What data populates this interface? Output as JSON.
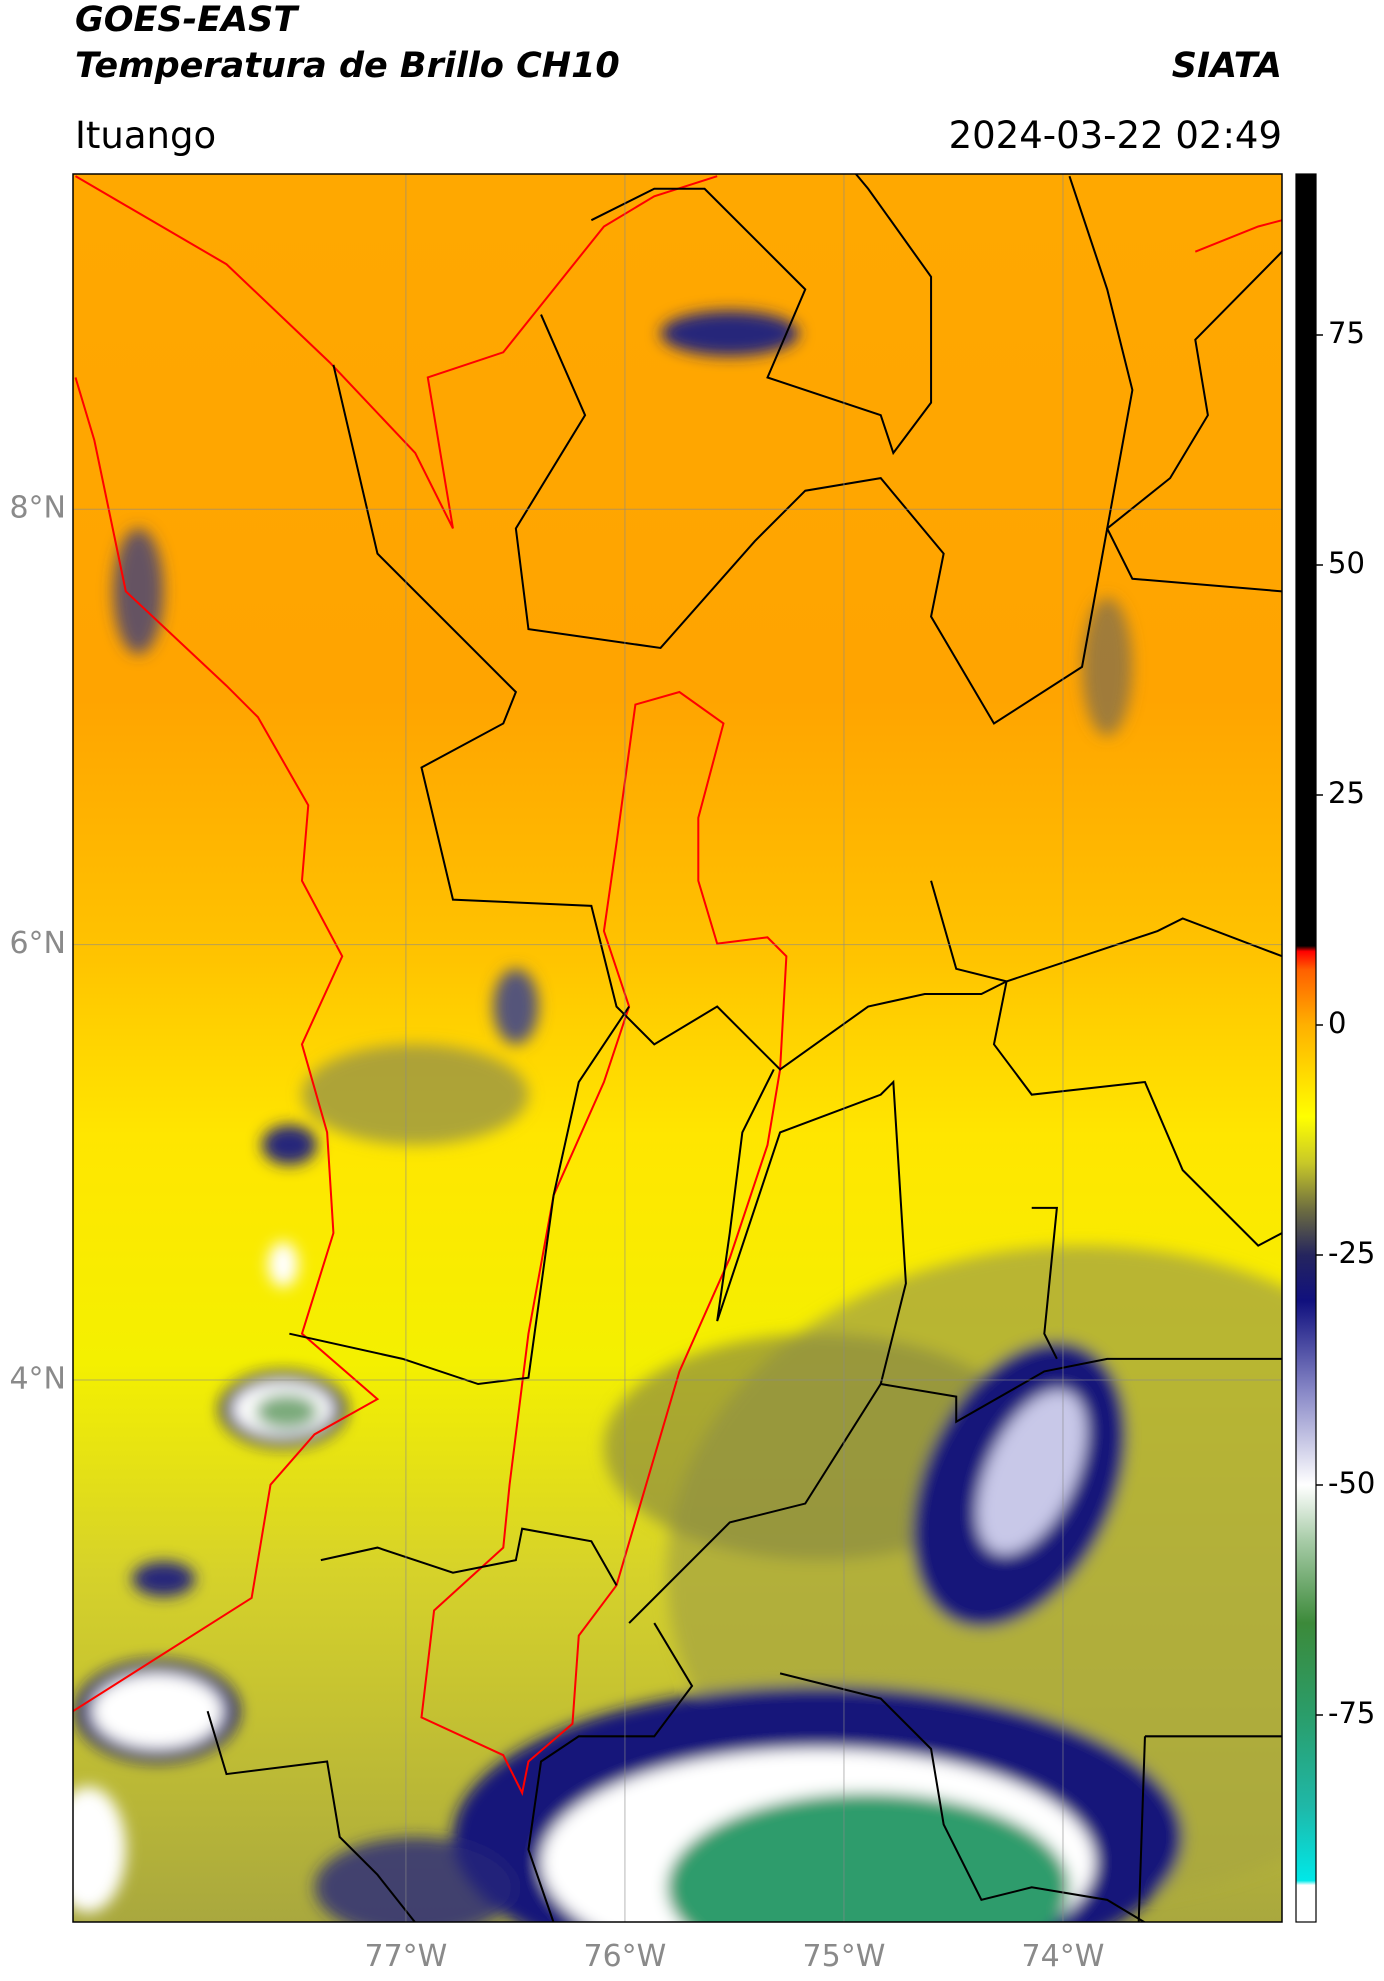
{
  "header": {
    "title_line1": "GOES-EAST",
    "title_line2": "Temperatura de Brillo CH10",
    "source": "SIATA",
    "region": "Ituango",
    "datetime": "2024-03-22 02:49"
  },
  "map": {
    "type": "map",
    "lon_lim": [
      -78.52,
      -73.0
    ],
    "lat_lim": [
      1.51,
      9.54
    ],
    "grid": true,
    "lat_ticks": [
      {
        "value": 8,
        "label": "8°N"
      },
      {
        "value": 6,
        "label": "6°N"
      },
      {
        "value": 4,
        "label": "4°N"
      }
    ],
    "lon_ticks": [
      {
        "value": -77,
        "label": "77°W"
      },
      {
        "value": -76,
        "label": "76°W"
      },
      {
        "value": -75,
        "label": "75°W"
      },
      {
        "value": -74,
        "label": "74°W"
      }
    ]
  },
  "colorbar": {
    "lim": [
      -97.5,
      92.5
    ],
    "ticks": [
      75,
      50,
      25,
      0,
      -25,
      -50,
      -75
    ],
    "colormap": [
      {
        "value": -97.5,
        "color": "#ffffff"
      },
      {
        "value": -93.5,
        "color": "#ffffff"
      },
      {
        "value": -93,
        "color": "#00e8e8"
      },
      {
        "value": -85,
        "color": "#1fb8a8"
      },
      {
        "value": -75,
        "color": "#2a9d6a"
      },
      {
        "value": -65,
        "color": "#3c8a3a"
      },
      {
        "value": -56,
        "color": "#a8cca8"
      },
      {
        "value": -50,
        "color": "#ffffff"
      },
      {
        "value": -40,
        "color": "#8a8ac8"
      },
      {
        "value": -30,
        "color": "#10107e"
      },
      {
        "value": -25,
        "color": "#25255e"
      },
      {
        "value": -20,
        "color": "#6e6e40"
      },
      {
        "value": -15,
        "color": "#c8c828"
      },
      {
        "value": -10,
        "color": "#ffff00"
      },
      {
        "value": 0,
        "color": "#ffb000"
      },
      {
        "value": 6,
        "color": "#ff6000"
      },
      {
        "value": 8,
        "color": "#ff0000"
      },
      {
        "value": 8.6,
        "color": "#000000"
      },
      {
        "value": 92.5,
        "color": "#000000"
      }
    ]
  }
}
